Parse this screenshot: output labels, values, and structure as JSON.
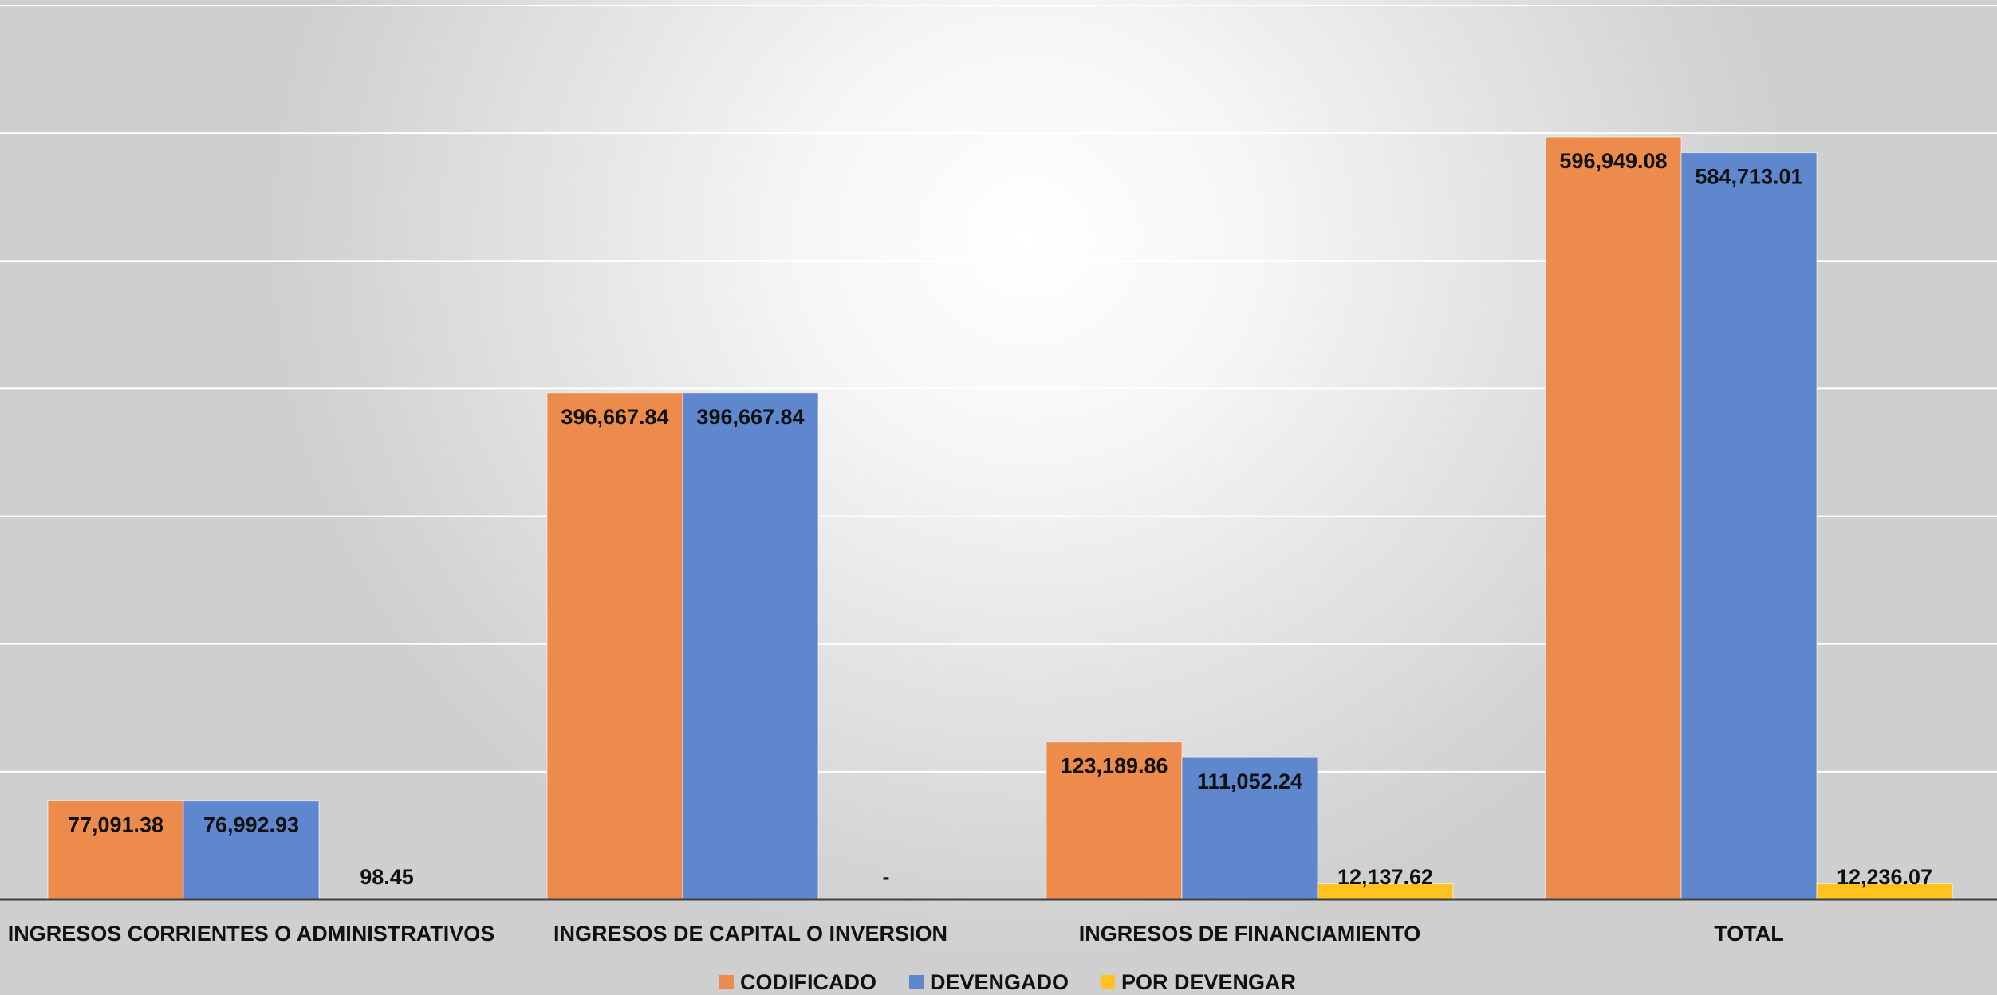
{
  "chart_data": {
    "type": "bar",
    "categories": [
      "INGRESOS CORRIENTES O ADMINISTRATIVOS",
      "INGRESOS DE CAPITAL O INVERSION",
      "INGRESOS DE FINANCIAMIENTO",
      "TOTAL"
    ],
    "series": [
      {
        "name": "CODIFICADO",
        "color": "#ED8B4C",
        "values": [
          77091.38,
          396667.84,
          123189.86,
          596949.08
        ],
        "labels": [
          "77,091.38",
          "396,667.84",
          "123,189.86",
          "596,949.08"
        ]
      },
      {
        "name": "DEVENGADO",
        "color": "#5E87CD",
        "values": [
          76992.93,
          396667.84,
          111052.24,
          584713.01
        ],
        "labels": [
          "76,992.93",
          "396,667.84",
          "111,052.24",
          "584,713.01"
        ]
      },
      {
        "name": "POR DEVENGAR",
        "color": "#FFC21E",
        "values": [
          98.45,
          0,
          12137.62,
          12236.07
        ],
        "labels": [
          "98.45",
          "-",
          "12,137.62",
          "12,236.07"
        ]
      }
    ],
    "ylim": [
      0,
      700000
    ],
    "grid": true,
    "legend_position": "bottom"
  }
}
